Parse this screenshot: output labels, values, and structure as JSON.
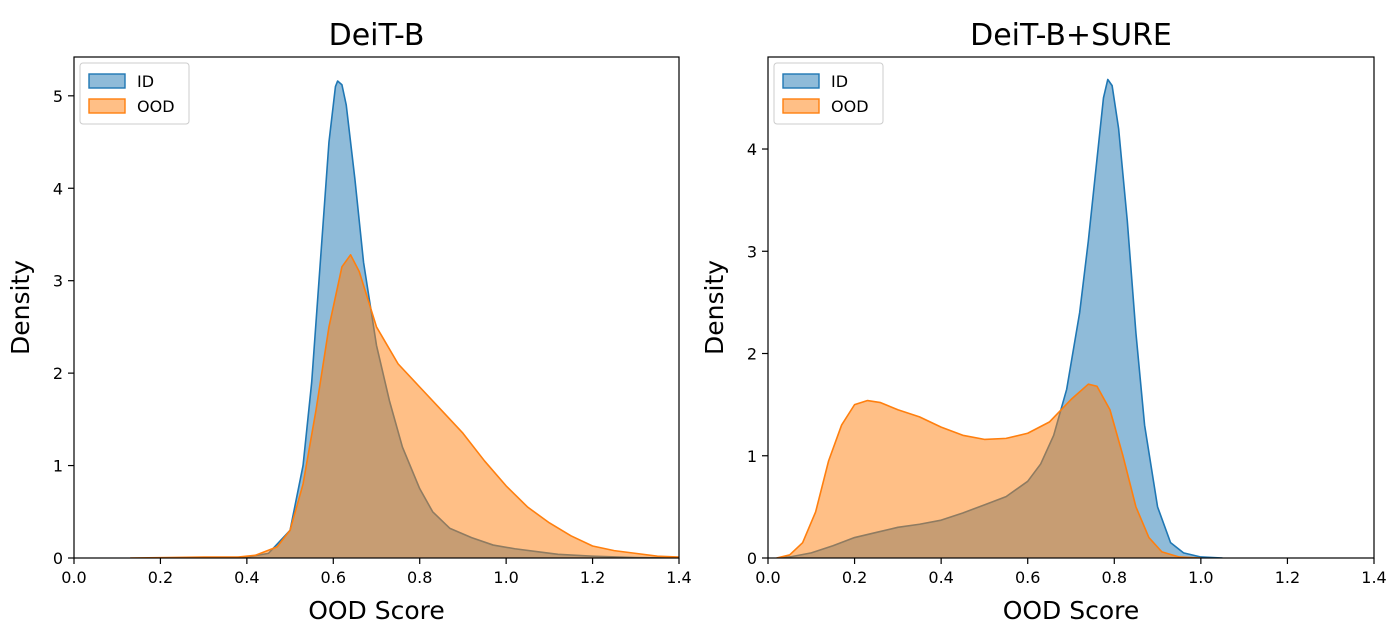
{
  "chart_data": [
    {
      "type": "area",
      "title": "DeiT-B",
      "xlabel": "OOD Score",
      "ylabel": "Density",
      "xlim": [
        0.0,
        1.4
      ],
      "ylim": [
        0,
        5.42
      ],
      "xticks": [
        "0.0",
        "0.2",
        "0.4",
        "0.6",
        "0.8",
        "1.0",
        "1.2",
        "1.4"
      ],
      "yticks": [
        "0",
        "1",
        "2",
        "3",
        "4",
        "5"
      ],
      "legend": "top-left",
      "series": [
        {
          "name": "ID",
          "line_color": "#1f77b4",
          "fill_color": "#1f77b4",
          "points": [
            [
              0.3,
              0
            ],
            [
              0.4,
              0.01
            ],
            [
              0.45,
              0.05
            ],
            [
              0.5,
              0.3
            ],
            [
              0.53,
              1.0
            ],
            [
              0.55,
              1.9
            ],
            [
              0.57,
              3.2
            ],
            [
              0.59,
              4.5
            ],
            [
              0.605,
              5.1
            ],
            [
              0.61,
              5.16
            ],
            [
              0.62,
              5.12
            ],
            [
              0.63,
              4.9
            ],
            [
              0.65,
              4.1
            ],
            [
              0.67,
              3.2
            ],
            [
              0.7,
              2.3
            ],
            [
              0.73,
              1.7
            ],
            [
              0.76,
              1.2
            ],
            [
              0.8,
              0.75
            ],
            [
              0.83,
              0.5
            ],
            [
              0.87,
              0.32
            ],
            [
              0.92,
              0.22
            ],
            [
              0.97,
              0.14
            ],
            [
              1.02,
              0.1
            ],
            [
              1.07,
              0.07
            ],
            [
              1.12,
              0.04
            ],
            [
              1.2,
              0.02
            ],
            [
              1.3,
              0.005
            ],
            [
              1.4,
              0
            ]
          ]
        },
        {
          "name": "OOD",
          "line_color": "#ff7f0e",
          "fill_color": "#ff7f0e",
          "points": [
            [
              0.13,
              0
            ],
            [
              0.3,
              0.01
            ],
            [
              0.38,
              0.01
            ],
            [
              0.42,
              0.03
            ],
            [
              0.47,
              0.12
            ],
            [
              0.5,
              0.3
            ],
            [
              0.53,
              0.8
            ],
            [
              0.56,
              1.6
            ],
            [
              0.59,
              2.5
            ],
            [
              0.62,
              3.15
            ],
            [
              0.64,
              3.28
            ],
            [
              0.66,
              3.1
            ],
            [
              0.7,
              2.5
            ],
            [
              0.75,
              2.1
            ],
            [
              0.8,
              1.85
            ],
            [
              0.85,
              1.6
            ],
            [
              0.9,
              1.35
            ],
            [
              0.95,
              1.05
            ],
            [
              1.0,
              0.78
            ],
            [
              1.05,
              0.55
            ],
            [
              1.1,
              0.38
            ],
            [
              1.15,
              0.24
            ],
            [
              1.2,
              0.13
            ],
            [
              1.25,
              0.08
            ],
            [
              1.3,
              0.05
            ],
            [
              1.35,
              0.02
            ],
            [
              1.4,
              0.01
            ]
          ]
        }
      ]
    },
    {
      "type": "area",
      "title": "DeiT-B+SURE",
      "xlabel": "OOD Score",
      "ylabel": "Density",
      "xlim": [
        0.0,
        1.4
      ],
      "ylim": [
        0,
        4.9
      ],
      "xticks": [
        "0.0",
        "0.2",
        "0.4",
        "0.6",
        "0.8",
        "1.0",
        "1.2",
        "1.4"
      ],
      "yticks": [
        "0",
        "1",
        "2",
        "3",
        "4"
      ],
      "legend": "top-left",
      "series": [
        {
          "name": "ID",
          "line_color": "#1f77b4",
          "fill_color": "#1f77b4",
          "points": [
            [
              0.02,
              0
            ],
            [
              0.05,
              0.01
            ],
            [
              0.1,
              0.05
            ],
            [
              0.15,
              0.12
            ],
            [
              0.2,
              0.2
            ],
            [
              0.25,
              0.25
            ],
            [
              0.3,
              0.3
            ],
            [
              0.35,
              0.33
            ],
            [
              0.4,
              0.37
            ],
            [
              0.45,
              0.44
            ],
            [
              0.5,
              0.52
            ],
            [
              0.55,
              0.6
            ],
            [
              0.6,
              0.75
            ],
            [
              0.63,
              0.92
            ],
            [
              0.66,
              1.2
            ],
            [
              0.69,
              1.65
            ],
            [
              0.72,
              2.4
            ],
            [
              0.74,
              3.1
            ],
            [
              0.76,
              3.9
            ],
            [
              0.775,
              4.5
            ],
            [
              0.785,
              4.68
            ],
            [
              0.795,
              4.62
            ],
            [
              0.81,
              4.2
            ],
            [
              0.83,
              3.3
            ],
            [
              0.85,
              2.2
            ],
            [
              0.87,
              1.3
            ],
            [
              0.9,
              0.5
            ],
            [
              0.93,
              0.15
            ],
            [
              0.96,
              0.05
            ],
            [
              1.0,
              0.01
            ],
            [
              1.05,
              0
            ]
          ]
        },
        {
          "name": "OOD",
          "line_color": "#ff7f0e",
          "fill_color": "#ff7f0e",
          "points": [
            [
              0.02,
              0
            ],
            [
              0.05,
              0.03
            ],
            [
              0.08,
              0.15
            ],
            [
              0.11,
              0.45
            ],
            [
              0.14,
              0.95
            ],
            [
              0.17,
              1.3
            ],
            [
              0.2,
              1.5
            ],
            [
              0.23,
              1.54
            ],
            [
              0.26,
              1.52
            ],
            [
              0.3,
              1.45
            ],
            [
              0.35,
              1.38
            ],
            [
              0.4,
              1.28
            ],
            [
              0.45,
              1.2
            ],
            [
              0.5,
              1.16
            ],
            [
              0.55,
              1.17
            ],
            [
              0.6,
              1.22
            ],
            [
              0.65,
              1.33
            ],
            [
              0.7,
              1.55
            ],
            [
              0.74,
              1.7
            ],
            [
              0.76,
              1.68
            ],
            [
              0.79,
              1.45
            ],
            [
              0.82,
              1.0
            ],
            [
              0.85,
              0.5
            ],
            [
              0.88,
              0.2
            ],
            [
              0.91,
              0.06
            ],
            [
              0.95,
              0.01
            ],
            [
              1.0,
              0
            ]
          ]
        }
      ]
    }
  ]
}
